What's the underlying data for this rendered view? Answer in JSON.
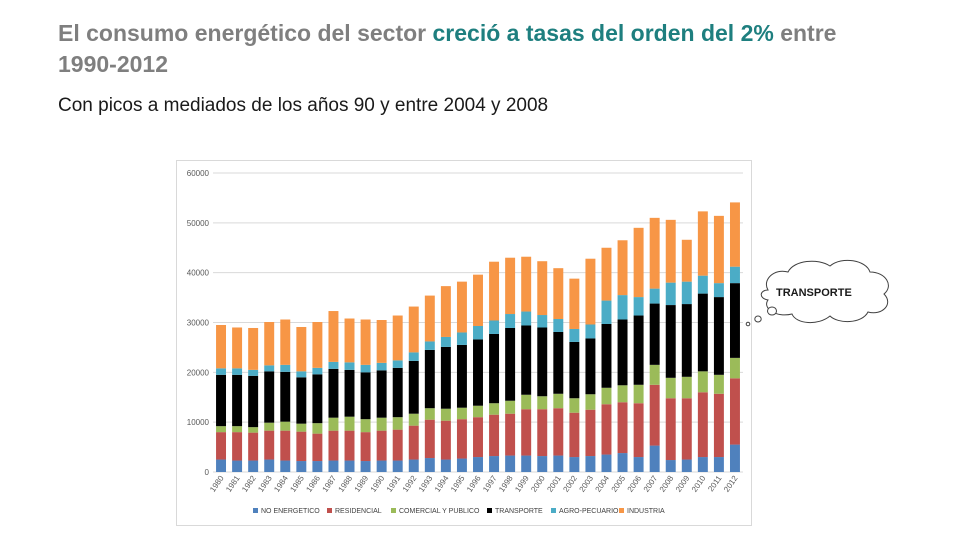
{
  "title": {
    "part1": "El consumo energético del sector ",
    "part2": "creció a tasas del orden del 2%",
    "part3": " entre 1990-2012"
  },
  "subtitle": "Con picos a mediados de los años 90 y entre 2004 y 2008",
  "callout": "TRANSPORTE",
  "colors": {
    "NO ENERGETICO": "#4f81bd",
    "RESIDENCIAL": "#c0504d",
    "COMERCIAL Y PUBLICO": "#9bbb59",
    "TRANSPORTE": "#000000",
    "AGRO-PECUARIO": "#4bacc6",
    "INDUSTRIA": "#f79646"
  },
  "chart_data": {
    "type": "bar",
    "stacked": true,
    "categories": [
      "1980",
      "1981",
      "1982",
      "1983",
      "1984",
      "1985",
      "1986",
      "1987",
      "1988",
      "1989",
      "1990",
      "1991",
      "1992",
      "1993",
      "1994",
      "1995",
      "1996",
      "1997",
      "1998",
      "1999",
      "2000",
      "2001",
      "2002",
      "2003",
      "2004",
      "2005",
      "2006",
      "2007",
      "2008",
      "2009",
      "2010",
      "2011",
      "2012"
    ],
    "ylim": [
      0,
      60000
    ],
    "yticks": [
      0,
      10000,
      20000,
      30000,
      40000,
      50000,
      60000
    ],
    "grid": true,
    "legend_position": "bottom",
    "series": [
      {
        "name": "NO ENERGETICO",
        "values": [
          2500,
          2300,
          2300,
          2500,
          2300,
          2200,
          2200,
          2300,
          2300,
          2200,
          2300,
          2300,
          2500,
          2800,
          2500,
          2700,
          3000,
          3200,
          3300,
          3300,
          3200,
          3300,
          3000,
          3200,
          3500,
          3800,
          3000,
          5300,
          2400,
          2500,
          3000,
          3000,
          5500
        ]
      },
      {
        "name": "RESIDENCIAL",
        "values": [
          5500,
          5700,
          5600,
          5800,
          6000,
          5900,
          5500,
          6000,
          6000,
          5800,
          6000,
          6200,
          6800,
          7700,
          7800,
          7900,
          8000,
          8300,
          8400,
          9300,
          9400,
          9500,
          8900,
          9300,
          10100,
          10200,
          10800,
          12200,
          12400,
          12300,
          13000,
          12700,
          13300
        ]
      },
      {
        "name": "COMERCIAL Y PUBLICO",
        "values": [
          1200,
          1200,
          1100,
          1600,
          1800,
          1600,
          2100,
          2600,
          2800,
          2600,
          2600,
          2500,
          2400,
          2300,
          2400,
          2300,
          2300,
          2300,
          2600,
          2900,
          2600,
          2900,
          2900,
          3100,
          3300,
          3400,
          3700,
          4000,
          4100,
          4300,
          4200,
          3800,
          4100
        ]
      },
      {
        "name": "TRANSPORTE",
        "values": [
          10300,
          10300,
          10300,
          10300,
          10000,
          9300,
          9800,
          9800,
          9400,
          9400,
          9500,
          9900,
          10600,
          11700,
          12400,
          12600,
          13300,
          13900,
          14600,
          13900,
          13800,
          12400,
          11300,
          11200,
          12800,
          13200,
          13900,
          12300,
          14600,
          14600,
          15600,
          15600,
          15000
        ]
      },
      {
        "name": "AGRO-PECUARIO",
        "values": [
          1300,
          1300,
          1200,
          1200,
          1400,
          1200,
          1300,
          1400,
          1500,
          1500,
          1500,
          1500,
          1700,
          1700,
          2000,
          2500,
          2700,
          2700,
          2800,
          2800,
          2500,
          2600,
          2600,
          2800,
          4700,
          4900,
          3700,
          3000,
          4500,
          4500,
          3600,
          2800,
          3300
        ]
      },
      {
        "name": "INDUSTRIA",
        "values": [
          8700,
          8200,
          8400,
          8700,
          9100,
          8900,
          9200,
          10200,
          8800,
          9100,
          8600,
          9000,
          9200,
          9200,
          10200,
          10200,
          10300,
          11800,
          11300,
          11000,
          10800,
          10200,
          10100,
          13200,
          10600,
          11000,
          13900,
          14200,
          12600,
          8400,
          12900,
          13500,
          12900
        ]
      }
    ]
  }
}
